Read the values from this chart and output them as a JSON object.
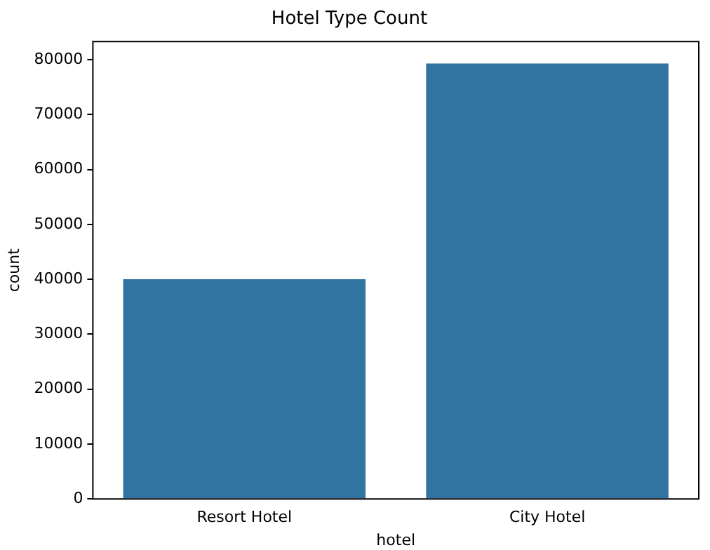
{
  "chart_data": {
    "type": "bar",
    "title": "Hotel Type Count",
    "xlabel": "hotel",
    "ylabel": "count",
    "categories": [
      "Resort Hotel",
      "City Hotel"
    ],
    "values": [
      40000,
      79300
    ],
    "color": "#3274a1",
    "ylim": [
      0,
      83300
    ],
    "yticks": [
      0,
      10000,
      20000,
      30000,
      40000,
      50000,
      60000,
      70000,
      80000
    ],
    "grid": false,
    "legend": false
  }
}
